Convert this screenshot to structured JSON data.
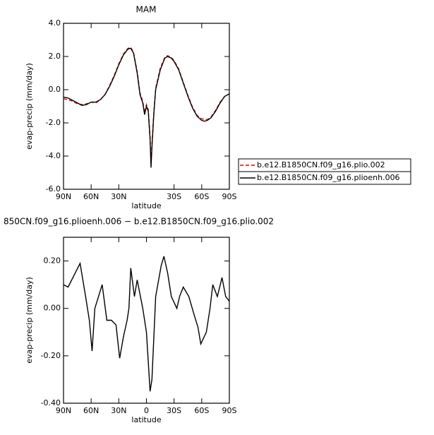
{
  "chart_data": [
    {
      "type": "line",
      "title": "MAM",
      "xlabel": "latitude",
      "ylabel": "evap-precip (mm/day)",
      "xlim": [
        90,
        -90
      ],
      "ylim": [
        -6.0,
        4.0
      ],
      "xticks": [
        {
          "value": 90,
          "label": "90N"
        },
        {
          "value": 60,
          "label": "60N"
        },
        {
          "value": 30,
          "label": "30N"
        },
        {
          "value": -30,
          "label": "30S"
        },
        {
          "value": -60,
          "label": "60S"
        },
        {
          "value": -90,
          "label": "90S"
        }
      ],
      "yticks": [
        {
          "value": 4.0,
          "label": "4.0"
        },
        {
          "value": 2.0,
          "label": "2.0"
        },
        {
          "value": 0.0,
          "label": "0.0"
        },
        {
          "value": -2.0,
          "label": "-2.0"
        },
        {
          "value": -4.0,
          "label": "-4.0"
        },
        {
          "value": -6.0,
          "label": "-6.0"
        }
      ],
      "x": [
        90,
        85,
        80,
        75,
        70,
        65,
        60,
        55,
        50,
        45,
        40,
        35,
        30,
        25,
        20,
        17,
        14,
        10,
        7,
        4,
        2,
        0,
        -2,
        -4,
        -5,
        -6,
        -8,
        -10,
        -15,
        -20,
        -23,
        -27,
        -30,
        -35,
        -40,
        -45,
        -50,
        -55,
        -60,
        -63,
        -66,
        -70,
        -75,
        -80,
        -85,
        -90
      ],
      "series": [
        {
          "name": "b.e12.B1850CN.f09_g16.plio.002",
          "color": "#e00000",
          "dash": true,
          "values": [
            -0.55,
            -0.6,
            -0.7,
            -0.85,
            -0.9,
            -0.85,
            -0.75,
            -0.8,
            -0.6,
            -0.3,
            0.25,
            0.85,
            1.55,
            2.15,
            2.5,
            2.55,
            2.25,
            1.1,
            -0.2,
            -0.7,
            -1.4,
            -0.9,
            -1.2,
            -2.8,
            -4.4,
            -3.3,
            -1.4,
            0.1,
            1.3,
            1.95,
            2.05,
            1.95,
            1.75,
            1.25,
            0.45,
            -0.35,
            -1.05,
            -1.55,
            -1.75,
            -1.8,
            -1.8,
            -1.65,
            -1.25,
            -0.75,
            -0.4,
            -0.25
          ]
        },
        {
          "name": "b.e12.B1850CN.f09_g16.plioenh.006",
          "color": "#000000",
          "dash": false,
          "values": [
            -0.45,
            -0.5,
            -0.65,
            -0.8,
            -0.95,
            -0.9,
            -0.75,
            -0.75,
            -0.6,
            -0.3,
            0.2,
            0.8,
            1.5,
            2.1,
            2.45,
            2.5,
            2.2,
            1.0,
            -0.3,
            -0.8,
            -1.5,
            -1.0,
            -1.3,
            -3.0,
            -4.7,
            -3.5,
            -1.5,
            0.0,
            1.2,
            1.9,
            2.0,
            1.9,
            1.7,
            1.2,
            0.4,
            -0.4,
            -1.1,
            -1.6,
            -1.85,
            -1.9,
            -1.85,
            -1.7,
            -1.3,
            -0.8,
            -0.4,
            -0.25
          ]
        }
      ]
    },
    {
      "type": "line",
      "title": "850CN.f09_g16.plioenh.006 − b.e12.B1850CN.f09_g16.plio.002",
      "xlabel": "latitude",
      "ylabel": "evap-precip (mm/day)",
      "xlim": [
        90,
        -90
      ],
      "ylim": [
        -0.4,
        0.3
      ],
      "xticks": [
        {
          "value": 90,
          "label": "90N"
        },
        {
          "value": 60,
          "label": "60N"
        },
        {
          "value": 30,
          "label": "30N"
        },
        0,
        {
          "value": -30,
          "label": "30S"
        },
        {
          "value": -60,
          "label": "60S"
        },
        {
          "value": -90,
          "label": "90S"
        }
      ],
      "yticks": [
        {
          "value": 0.2,
          "label": "0.20"
        },
        {
          "value": 0.0,
          "label": "0.00"
        },
        {
          "value": -0.2,
          "label": "-0.20"
        },
        {
          "value": -0.4,
          "label": "-0.40"
        }
      ],
      "x": [
        90,
        85,
        72,
        66,
        62,
        59,
        56,
        52,
        48,
        43,
        38,
        33,
        29,
        25,
        21,
        19,
        17,
        13,
        10,
        4,
        0,
        -4,
        -6,
        -10,
        -16,
        -19,
        -23,
        -27,
        -33,
        -36,
        -40,
        -46,
        -52,
        -56,
        -59,
        -65,
        -69,
        -72,
        -77,
        -82,
        -86,
        -90
      ],
      "series": [
        {
          "name": null,
          "color": "#000000",
          "dash": false,
          "values": [
            0.1,
            0.09,
            0.19,
            0.05,
            -0.05,
            -0.18,
            0.0,
            0.05,
            0.1,
            -0.05,
            -0.05,
            -0.07,
            -0.21,
            -0.12,
            -0.05,
            0.0,
            0.17,
            0.05,
            0.12,
            0.0,
            -0.1,
            -0.35,
            -0.3,
            0.05,
            0.18,
            0.22,
            0.15,
            0.05,
            0.0,
            0.05,
            0.09,
            0.05,
            -0.03,
            -0.08,
            -0.15,
            -0.1,
            0.0,
            0.1,
            0.05,
            0.13,
            0.05,
            0.03
          ]
        }
      ]
    }
  ]
}
